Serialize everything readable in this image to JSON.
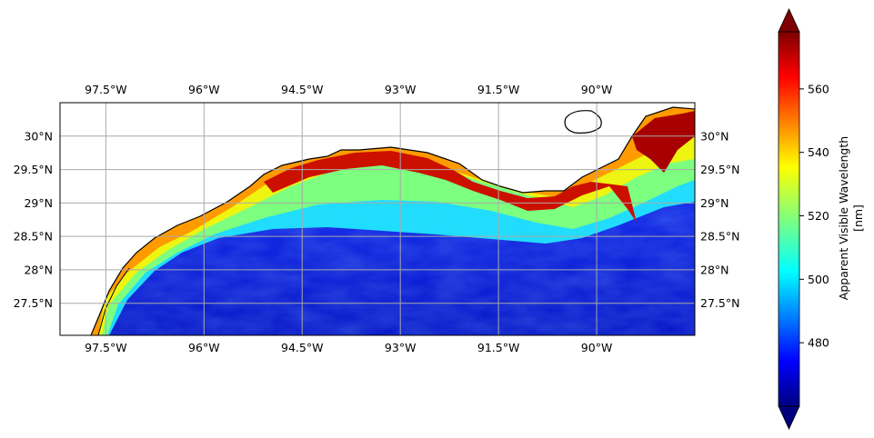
{
  "map": {
    "extent": {
      "lon": [
        -98.2,
        -88.5
      ],
      "lat": [
        27.02,
        30.5
      ]
    },
    "lon_ticks": [
      {
        "value": -97.5,
        "label": "97.5°W"
      },
      {
        "value": -96.0,
        "label": "96°W"
      },
      {
        "value": -94.5,
        "label": "94.5°W"
      },
      {
        "value": -93.0,
        "label": "93°W"
      },
      {
        "value": -91.5,
        "label": "91.5°W"
      },
      {
        "value": -90.0,
        "label": "90°W"
      }
    ],
    "lat_ticks": [
      {
        "value": 30.0,
        "label": "30°N"
      },
      {
        "value": 29.5,
        "label": "29.5°N"
      },
      {
        "value": 29.0,
        "label": "29°N"
      },
      {
        "value": 28.5,
        "label": "28.5°N"
      },
      {
        "value": 28.0,
        "label": "28°N"
      },
      {
        "value": 27.5,
        "label": "27.5°N"
      }
    ],
    "grid": true,
    "gridline_color": "#a9a9a9",
    "coastline_color": "#000000",
    "land_color": "#ffffff",
    "colormap": "jet"
  },
  "colorbar": {
    "label_line1": "Apparent Visible Wavelength",
    "label_line2": "[nm]",
    "range": [
      460,
      578
    ],
    "extend": "both",
    "ticks": [
      {
        "value": 480,
        "label": "480"
      },
      {
        "value": 500,
        "label": "500"
      },
      {
        "value": 520,
        "label": "520"
      },
      {
        "value": 540,
        "label": "540"
      },
      {
        "value": 560,
        "label": "560"
      }
    ]
  }
}
